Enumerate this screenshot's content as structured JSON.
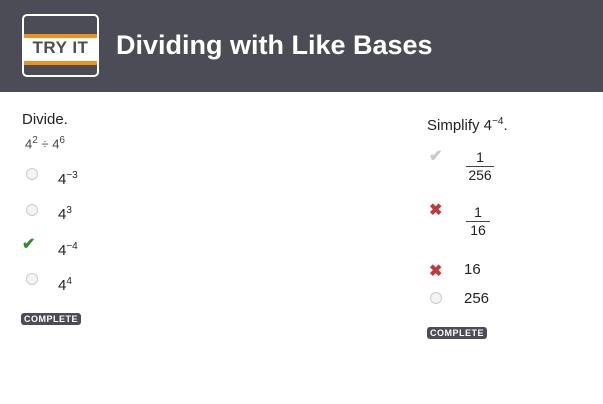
{
  "header": {
    "logo_text": "TRY IT",
    "title": "Dividing with Like Bases",
    "colors": {
      "header_bg": "#4b4c55",
      "logo_stripe": "#f0901e"
    }
  },
  "q1": {
    "prompt": "Divide.",
    "expr_base1": "4",
    "expr_exp1": "2",
    "expr_op": "÷",
    "expr_base2": "4",
    "expr_exp2": "6",
    "options": [
      {
        "base": "4",
        "exp": "−3",
        "state": "unselected"
      },
      {
        "base": "4",
        "exp": "3",
        "state": "unselected"
      },
      {
        "base": "4",
        "exp": "−4",
        "state": "correct"
      },
      {
        "base": "4",
        "exp": "4",
        "state": "unselected"
      }
    ],
    "status": "COMPLETE"
  },
  "q2": {
    "prompt": "Simplify 4",
    "prompt_exp": "−4",
    "prompt_end": ".",
    "options": [
      {
        "num": "1",
        "den": "256",
        "state": "correct-grey"
      },
      {
        "num": "1",
        "den": "16",
        "state": "incorrect"
      },
      {
        "text": "16",
        "state": "incorrect"
      },
      {
        "text": "256",
        "state": "unselected"
      }
    ],
    "status": "COMPLETE"
  },
  "icons": {
    "correct": "check-icon",
    "incorrect": "x-icon",
    "unselected": "radio-icon"
  },
  "colors": {
    "correct": "#2e8b2e",
    "incorrect": "#c0393b",
    "correct_grey": "#c8c8c8"
  }
}
